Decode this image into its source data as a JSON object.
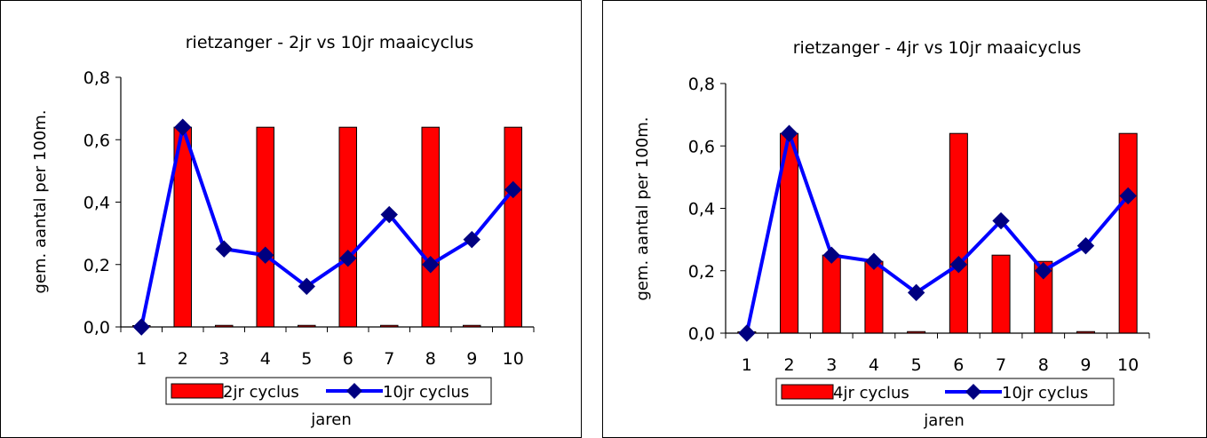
{
  "chart_data": [
    {
      "type": "bar",
      "title": "rietzanger - 2jr vs 10jr maaicyclus",
      "xlabel": "jaren",
      "ylabel": "gem. aantal per 100m.",
      "categories": [
        "1",
        "2",
        "3",
        "4",
        "5",
        "6",
        "7",
        "8",
        "9",
        "10"
      ],
      "ylim": [
        0,
        0.8
      ],
      "yticks": [
        0.0,
        0.2,
        0.4,
        0.6,
        0.8
      ],
      "ytick_labels": [
        "0,0",
        "0,2",
        "0,4",
        "0,6",
        "0,8"
      ],
      "legend_position": "bottom",
      "series": [
        {
          "name": "2jr cyclus",
          "kind": "bar",
          "color": "#ff0000",
          "values": [
            0,
            0.64,
            0.005,
            0.64,
            0.005,
            0.64,
            0.005,
            0.64,
            0.005,
            0.64
          ]
        },
        {
          "name": "10jr cyclus",
          "kind": "line",
          "color": "#0000ff",
          "marker_color": "#000080",
          "values": [
            0.0,
            0.64,
            0.25,
            0.23,
            0.13,
            0.22,
            0.36,
            0.2,
            0.28,
            0.44
          ]
        }
      ]
    },
    {
      "type": "bar",
      "title": "rietzanger - 4jr vs 10jr maaicyclus",
      "xlabel": "jaren",
      "ylabel": "gem. aantal per 100m.",
      "categories": [
        "1",
        "2",
        "3",
        "4",
        "5",
        "6",
        "7",
        "8",
        "9",
        "10"
      ],
      "ylim": [
        0,
        0.8
      ],
      "yticks": [
        0.0,
        0.2,
        0.4,
        0.6,
        0.8
      ],
      "ytick_labels": [
        "0,0",
        "0,2",
        "0,4",
        "0,6",
        "0,8"
      ],
      "legend_position": "bottom",
      "series": [
        {
          "name": "4jr cyclus",
          "kind": "bar",
          "color": "#ff0000",
          "values": [
            0,
            0.64,
            0.25,
            0.23,
            0.005,
            0.64,
            0.25,
            0.23,
            0.005,
            0.64
          ]
        },
        {
          "name": "10jr cyclus",
          "kind": "line",
          "color": "#0000ff",
          "marker_color": "#000080",
          "values": [
            0.0,
            0.64,
            0.25,
            0.23,
            0.13,
            0.22,
            0.36,
            0.2,
            0.28,
            0.44
          ]
        }
      ]
    }
  ]
}
